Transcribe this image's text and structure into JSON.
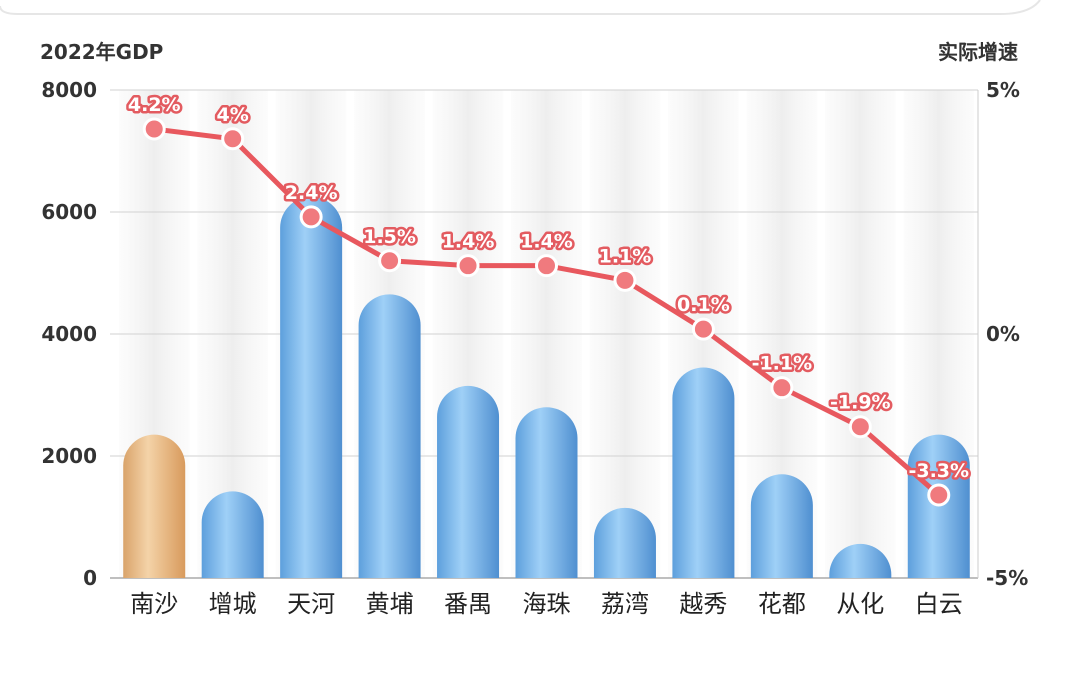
{
  "chart_data": {
    "type": "bar",
    "left_axis_title": "2022年GDP",
    "right_axis_title": "实际增速",
    "categories": [
      "南沙",
      "增城",
      "天河",
      "黄埔",
      "番禺",
      "海珠",
      "荔湾",
      "越秀",
      "花都",
      "从化",
      "白云"
    ],
    "series": [
      {
        "values": [
          2350,
          1420,
          6250,
          4650,
          3150,
          2800,
          1150,
          3450,
          1700,
          560,
          2350
        ],
        "axis": "left",
        "color": "#74b3ea",
        "highlight_index": 0,
        "highlight_color": "#e6b57a"
      },
      {
        "type": "line",
        "values": [
          4.2,
          4,
          2.4,
          1.5,
          1.4,
          1.4,
          1.1,
          0.1,
          -1.1,
          -1.9,
          -3.3
        ],
        "labels": [
          "4.2%",
          "4%",
          "2.4%",
          "1.5%",
          "1.4%",
          "1.4%",
          "1.1%",
          "0.1%",
          "-1.1%",
          "-1.9%",
          "-3.3%"
        ],
        "axis": "right",
        "color": "#e8585e"
      }
    ],
    "left_axis": {
      "ylim": [
        0,
        8000
      ],
      "ticks": [
        "0",
        "2000",
        "4000",
        "6000",
        "8000"
      ]
    },
    "right_axis": {
      "ylim": [
        -5,
        5
      ],
      "ticks": [
        "-5%",
        "0%",
        "5%"
      ]
    },
    "grid": true
  }
}
